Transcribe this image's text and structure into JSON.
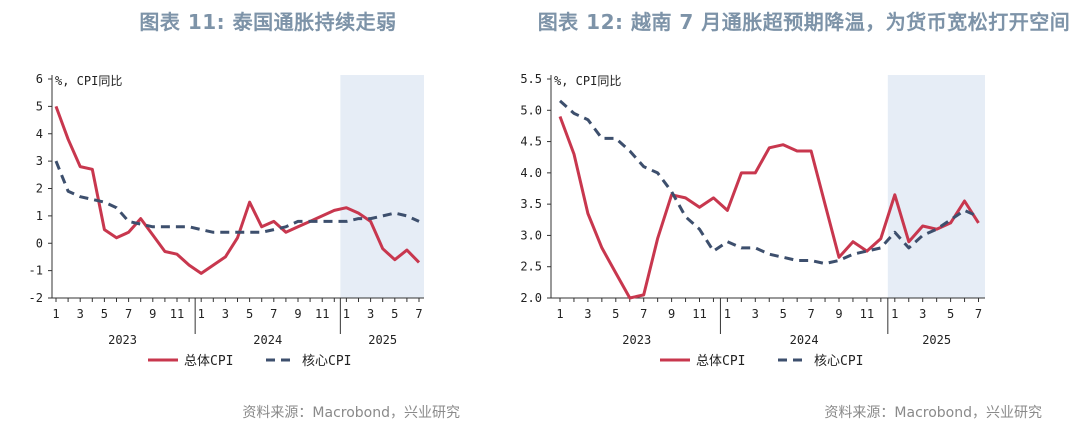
{
  "chart_data": [
    {
      "type": "line",
      "title": "图表 11: 泰国通胀持续走弱",
      "unit_label": "%, CPI同比",
      "source": "资料来源：Macrobond，兴业研究",
      "ylim": [
        -2,
        6
      ],
      "yticks": [
        "-2",
        "-1",
        "0",
        "1",
        "2",
        "3",
        "4",
        "5",
        "6"
      ],
      "xticks": [
        "1",
        "3",
        "5",
        "7",
        "9",
        "11",
        "1",
        "3",
        "5",
        "7",
        "9",
        "11",
        "1",
        "3",
        "5",
        "7"
      ],
      "years": [
        "2023",
        "2024",
        "2025"
      ],
      "shaded_from_month": 25,
      "legend": [
        "总体CPI",
        "核心CPI"
      ],
      "series": [
        {
          "name": "总体CPI",
          "style": "solid",
          "color": "#c8374e",
          "values": [
            5.0,
            3.8,
            2.8,
            2.7,
            0.5,
            0.2,
            0.4,
            0.9,
            0.3,
            -0.3,
            -0.4,
            -0.8,
            -1.1,
            -0.8,
            -0.5,
            0.2,
            1.5,
            0.6,
            0.8,
            0.4,
            0.6,
            0.8,
            1.0,
            1.2,
            1.3,
            1.1,
            0.8,
            -0.2,
            -0.6,
            -0.25,
            -0.7
          ]
        },
        {
          "name": "核心CPI",
          "style": "dashed",
          "color": "#3d4f6d",
          "values": [
            3.0,
            1.9,
            1.7,
            1.6,
            1.5,
            1.3,
            0.8,
            0.7,
            0.6,
            0.6,
            0.6,
            0.6,
            0.5,
            0.4,
            0.4,
            0.4,
            0.4,
            0.4,
            0.5,
            0.6,
            0.8,
            0.8,
            0.8,
            0.8,
            0.8,
            0.9,
            0.9,
            1.0,
            1.1,
            1.0,
            0.8
          ]
        }
      ]
    },
    {
      "type": "line",
      "title": "图表 12: 越南 7 月通胀超预期降温，为货币宽松打开空间",
      "unit_label": "%, CPI同比",
      "source": "资料来源：Macrobond，兴业研究",
      "ylim": [
        2.0,
        5.5
      ],
      "yticks": [
        "2.0",
        "2.5",
        "3.0",
        "3.5",
        "4.0",
        "4.5",
        "5.0",
        "5.5"
      ],
      "xticks": [
        "1",
        "3",
        "5",
        "7",
        "9",
        "11",
        "1",
        "3",
        "5",
        "7",
        "9",
        "11",
        "1",
        "3",
        "5",
        "7"
      ],
      "years": [
        "2023",
        "2024",
        "2025"
      ],
      "shaded_from_month": 25,
      "legend": [
        "总体CPI",
        "核心CPI"
      ],
      "series": [
        {
          "name": "总体CPI",
          "style": "solid",
          "color": "#c8374e",
          "values": [
            4.9,
            4.3,
            3.35,
            2.8,
            2.4,
            2.0,
            2.05,
            2.95,
            3.65,
            3.6,
            3.45,
            3.6,
            3.4,
            4.0,
            4.0,
            4.4,
            4.45,
            4.35,
            4.35,
            3.5,
            2.65,
            2.9,
            2.75,
            2.95,
            3.65,
            2.9,
            3.15,
            3.1,
            3.2,
            3.55,
            3.2
          ]
        },
        {
          "name": "核心CPI",
          "style": "dashed",
          "color": "#3d4f6d",
          "values": [
            5.15,
            4.95,
            4.85,
            4.55,
            4.55,
            4.35,
            4.1,
            4.0,
            3.7,
            3.3,
            3.1,
            2.75,
            2.9,
            2.8,
            2.8,
            2.7,
            2.65,
            2.6,
            2.6,
            2.55,
            2.6,
            2.7,
            2.75,
            2.8,
            3.05,
            2.8,
            3.0,
            3.1,
            3.25,
            3.4,
            3.3
          ]
        }
      ]
    }
  ]
}
